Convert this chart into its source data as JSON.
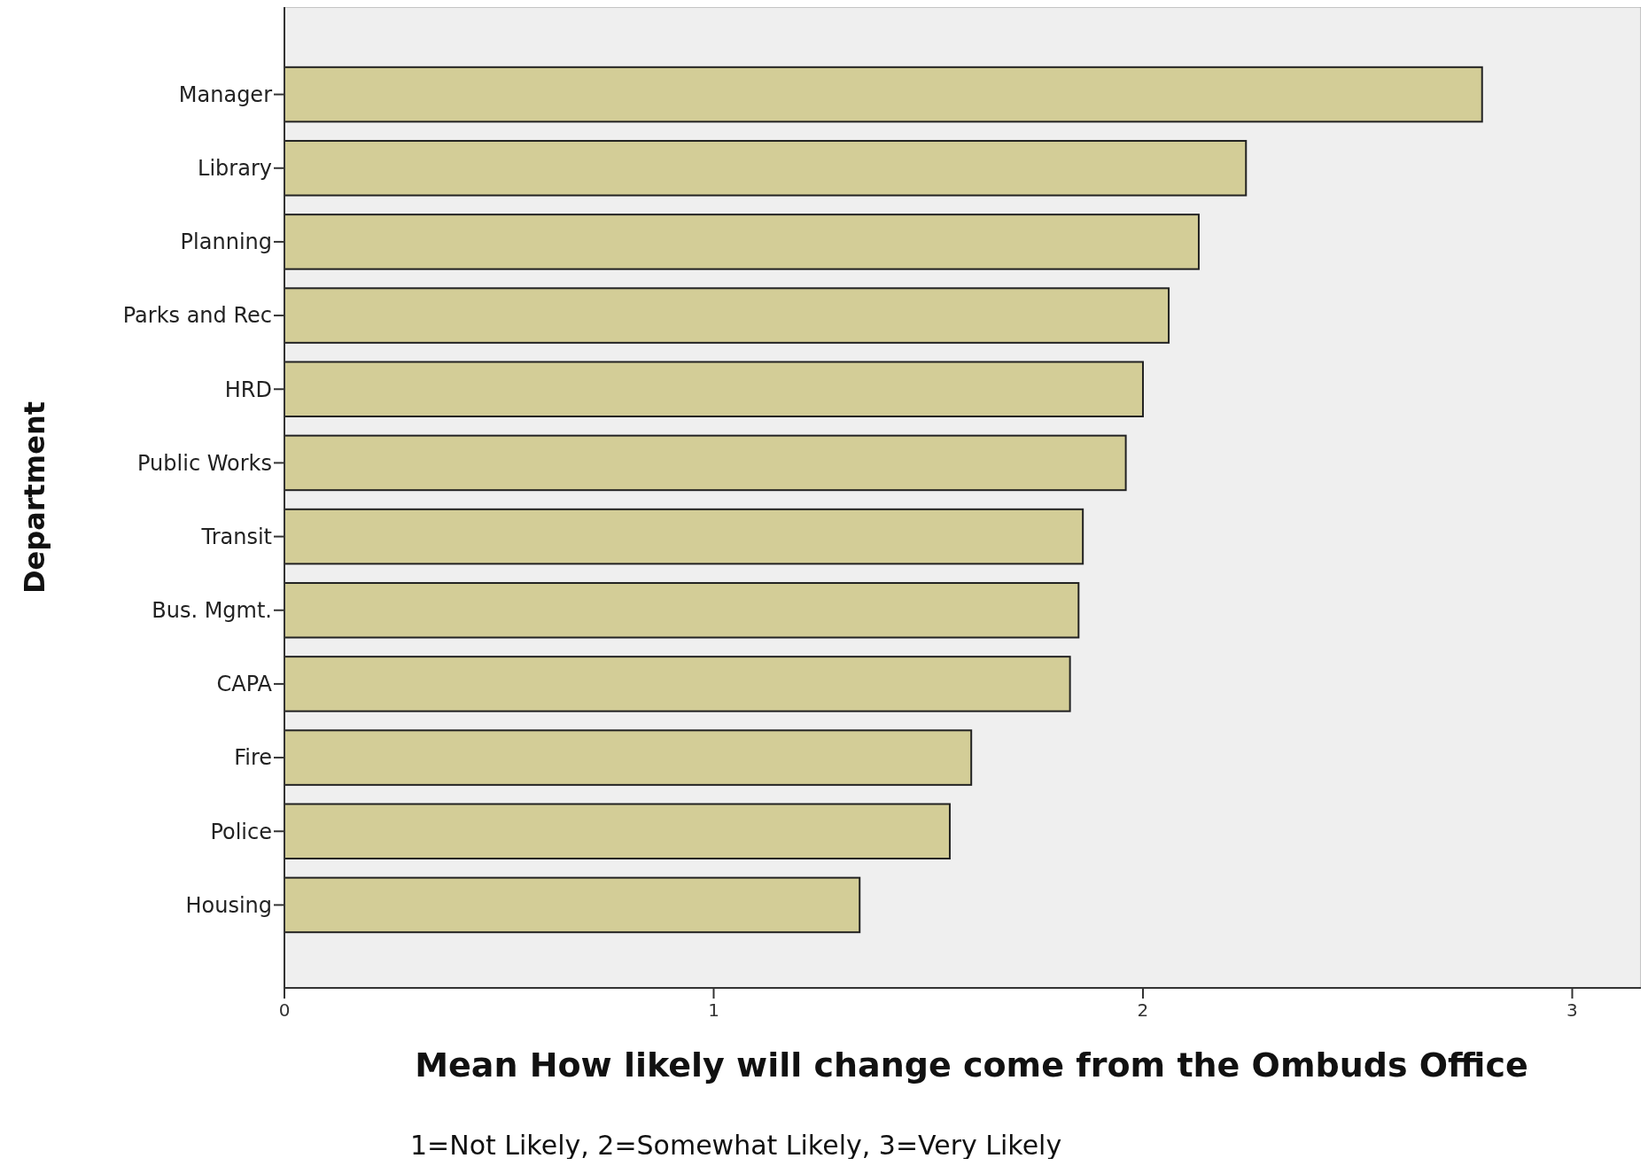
{
  "chart_data": {
    "type": "bar",
    "orientation": "horizontal",
    "xlabel": "Mean How likely will change come from the Ombuds Office",
    "ylabel": "Department",
    "annotations": [
      "1=Not Likely, 2=Somewhat Likely, 3=Very Likely"
    ],
    "categories": [
      "Manager",
      "Library",
      "Planning",
      "Parks and Rec",
      "HRD",
      "Public Works",
      "Transit",
      "Bus. Mgmt.",
      "CAPA",
      "Fire",
      "Police",
      "Housing"
    ],
    "values": [
      2.79,
      2.24,
      2.13,
      2.06,
      2.0,
      1.96,
      1.86,
      1.85,
      1.83,
      1.6,
      1.55,
      1.34
    ],
    "color": "#d3cd97",
    "xlim": [
      0,
      3.16
    ],
    "xticks": [
      0,
      1,
      2,
      3
    ],
    "grid": false
  }
}
